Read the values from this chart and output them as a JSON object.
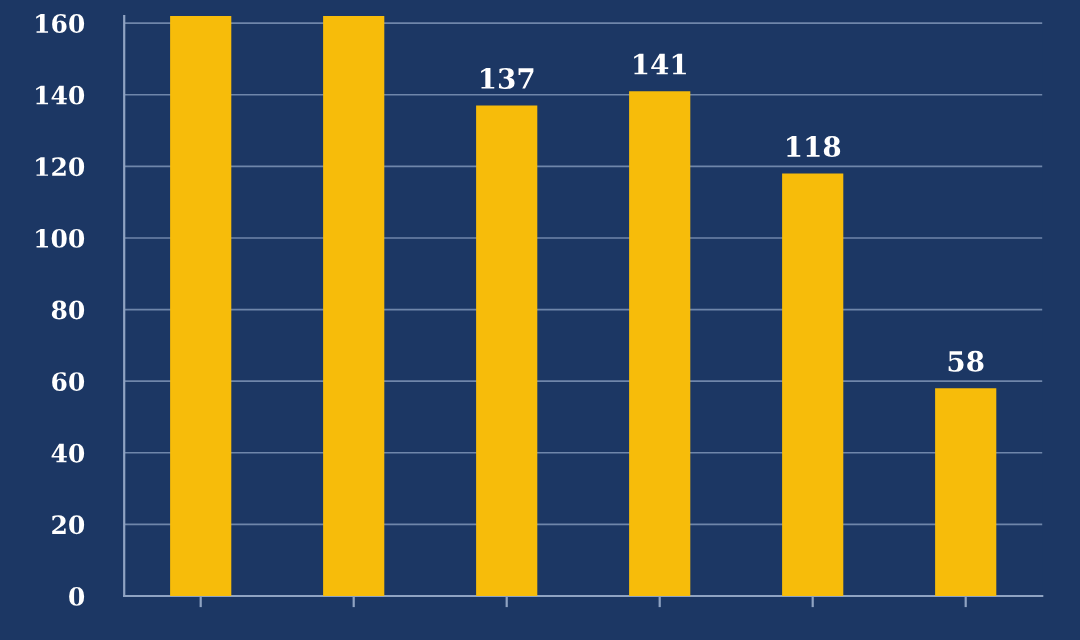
{
  "chart_data": {
    "type": "bar",
    "categories": [
      null,
      null,
      null,
      null,
      null,
      null
    ],
    "values": [
      162,
      162,
      137,
      141,
      118,
      58
    ],
    "value_labels": [
      null,
      null,
      "137",
      "141",
      "118",
      "58"
    ],
    "color": "#f7bc0a",
    "ylim": [
      0,
      162
    ],
    "yticks": [
      0,
      20,
      40,
      60,
      80,
      100,
      120,
      140,
      160
    ],
    "grid": "y"
  }
}
